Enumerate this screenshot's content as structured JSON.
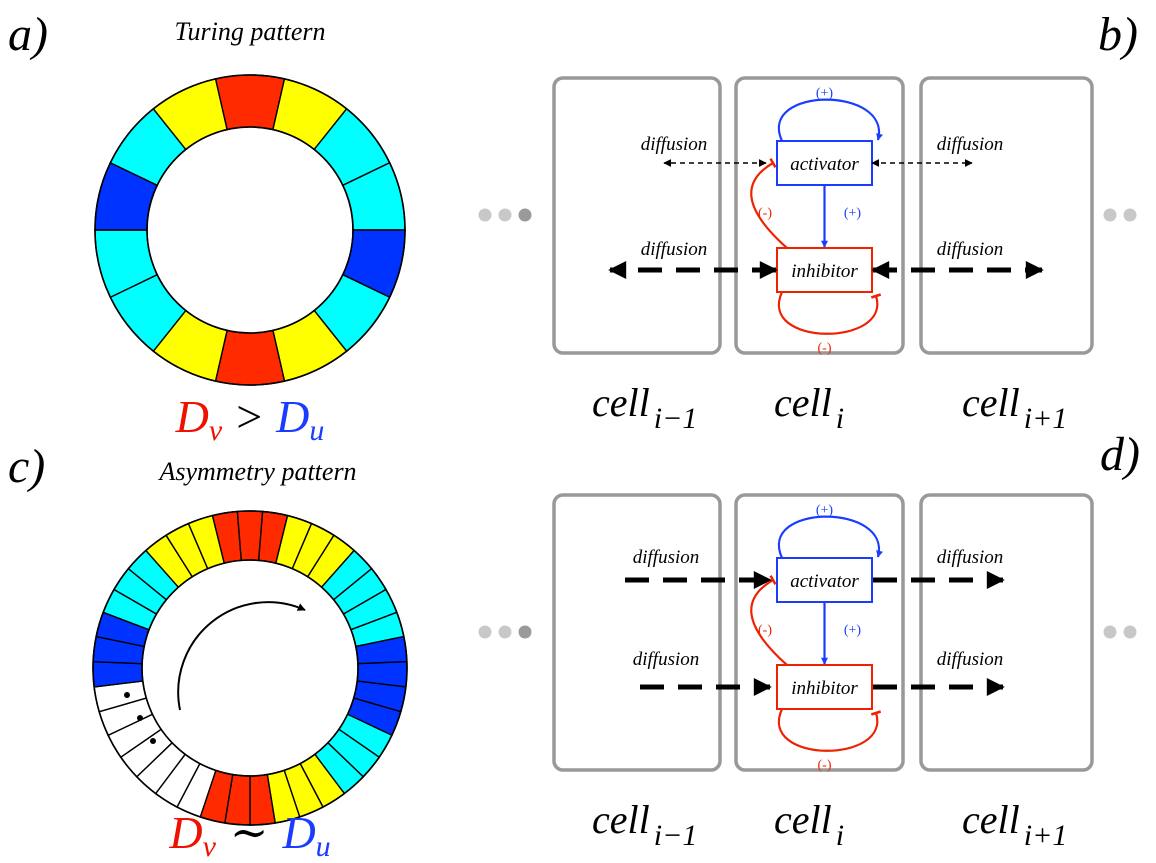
{
  "panels": {
    "a": {
      "letter": "a)",
      "title": "Turing pattern",
      "ring_colors": [
        "#ff2a00",
        "#ffff00",
        "#00ffff",
        "#00ffff",
        "#0033ff",
        "#00ffff",
        "#ffff00",
        "#ff2a00",
        "#ffff00",
        "#00ffff",
        "#00ffff",
        "#0033ff",
        "#00ffff",
        "#ffff00"
      ],
      "relation": {
        "left": "D",
        "left_sub": "v",
        "op": ">",
        "right": "D",
        "right_sub": "u"
      }
    },
    "b": {
      "letter": "b)"
    },
    "c": {
      "letter": "c)",
      "title": "Asymmetry pattern",
      "ring_colors": [
        "#ff2a00",
        "#ff2a00",
        "#ff2a00",
        "#ffff00",
        "#ffff00",
        "#ffff00",
        "#00ffff",
        "#00ffff",
        "#00ffff",
        "#00ffff",
        "#0033ff",
        "#0033ff",
        "#0033ff",
        "#0033ff",
        "#00ffff",
        "#00ffff",
        "#00ffff",
        "#ffff00",
        "#ffff00",
        "#ffff00",
        "#ff2a00",
        "#ff2a00",
        "#ff2a00",
        "#ffffff",
        "#ffffff",
        "#ffffff",
        "#ffffff",
        "#ffffff",
        "#ffffff",
        "#ffffff",
        "#0033ff",
        "#0033ff",
        "#0033ff",
        "#00ffff",
        "#00ffff",
        "#00ffff",
        "#ffff00",
        "#ffff00",
        "#ffff00"
      ],
      "relation": {
        "left": "D",
        "left_sub": "v",
        "op": "∼",
        "right": "D",
        "right_sub": "u"
      }
    },
    "d": {
      "letter": "d)"
    }
  },
  "diagram": {
    "activator": "activator",
    "inhibitor": "inhibitor",
    "diffusion": "diffusion",
    "plus": "(+)",
    "minus": "(-)",
    "cells": [
      {
        "base": "cell",
        "sub": "i−1"
      },
      {
        "base": "cell",
        "sub": "i"
      },
      {
        "base": "cell",
        "sub": "i+1"
      }
    ]
  },
  "colors": {
    "activator": "#1a3cff",
    "inhibitor": "#ee2200",
    "cell_border": "#999999",
    "dots": "#c8c8c8"
  }
}
